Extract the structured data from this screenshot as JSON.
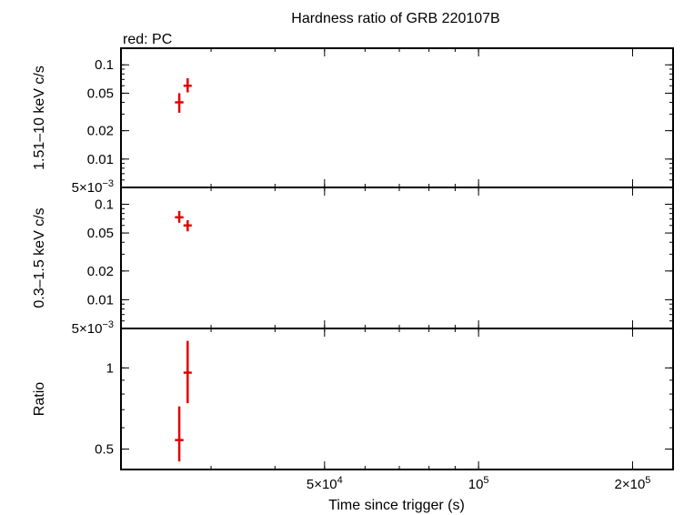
{
  "chart_data": {
    "title": "Hardness ratio of GRB 220107B",
    "subtitle": "red: PC",
    "xlabel": "Time since trigger (s)",
    "x_scale": "log",
    "x_range": [
      20000,
      240000
    ],
    "x_ticks": [
      {
        "value": 50000,
        "mant": "5",
        "exp": "4"
      },
      {
        "value": 100000,
        "mant": "10",
        "exp": "5"
      },
      {
        "value": 200000,
        "mant": "2",
        "exp": "5"
      }
    ],
    "panels": [
      {
        "id": "hard",
        "type": "scatter",
        "ylabel": "1.51–10 keV c/s",
        "y_scale": "log",
        "y_range": [
          0.005,
          0.15
        ],
        "y_ticks": [
          {
            "value": 0.1,
            "label": "0.1"
          },
          {
            "value": 0.05,
            "label": "0.05"
          },
          {
            "value": 0.02,
            "label": "0.02"
          },
          {
            "value": 0.01,
            "label": "0.01"
          },
          {
            "value": 0.005,
            "mant": "5",
            "exp": "−3"
          }
        ],
        "series": [
          {
            "color": "#e00000",
            "points": [
              {
                "x": 26000,
                "y": 0.04,
                "xerr": [
                  25500,
                  26500
                ],
                "yerr": [
                  0.031,
                  0.05
                ]
              },
              {
                "x": 27000,
                "y": 0.06,
                "xerr": [
                  26500,
                  27500
                ],
                "yerr": [
                  0.051,
                  0.072
                ]
              }
            ]
          }
        ]
      },
      {
        "id": "soft",
        "type": "scatter",
        "ylabel": "0.3–1.5 keV c/s",
        "y_scale": "log",
        "y_range": [
          0.005,
          0.15
        ],
        "y_ticks": [
          {
            "value": 0.1,
            "label": "0.1"
          },
          {
            "value": 0.05,
            "label": "0.05"
          },
          {
            "value": 0.02,
            "label": "0.02"
          },
          {
            "value": 0.01,
            "label": "0.01"
          },
          {
            "value": 0.005,
            "mant": "5",
            "exp": "−3"
          }
        ],
        "series": [
          {
            "color": "#e00000",
            "points": [
              {
                "x": 26000,
                "y": 0.073,
                "xerr": [
                  25500,
                  26500
                ],
                "yerr": [
                  0.064,
                  0.085
                ]
              },
              {
                "x": 27000,
                "y": 0.06,
                "xerr": [
                  26500,
                  27500
                ],
                "yerr": [
                  0.052,
                  0.068
                ]
              }
            ]
          }
        ]
      },
      {
        "id": "ratio",
        "type": "scatter",
        "ylabel": "Ratio",
        "y_scale": "log",
        "y_range": [
          0.42,
          1.4
        ],
        "y_ticks": [
          {
            "value": 1,
            "label": "1"
          },
          {
            "value": 0.5,
            "label": "0.5"
          }
        ],
        "series": [
          {
            "color": "#e00000",
            "points": [
              {
                "x": 26000,
                "y": 0.54,
                "xerr": [
                  25500,
                  26500
                ],
                "yerr": [
                  0.45,
                  0.72
                ]
              },
              {
                "x": 27000,
                "y": 0.96,
                "xerr": [
                  26500,
                  27500
                ],
                "yerr": [
                  0.74,
                  1.26
                ]
              }
            ]
          }
        ]
      }
    ]
  }
}
